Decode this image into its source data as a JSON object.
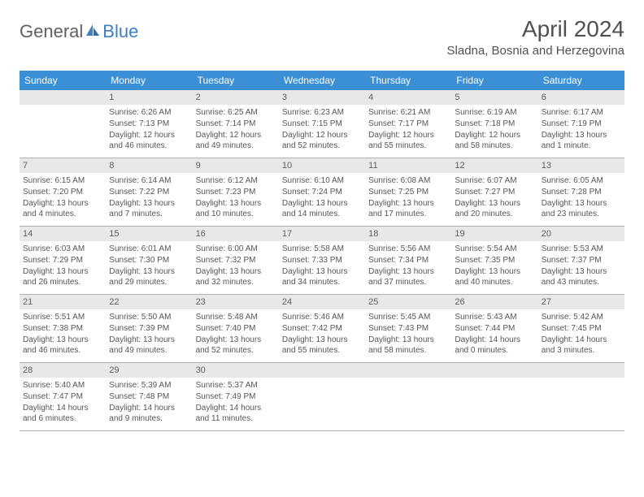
{
  "logo": {
    "general": "General",
    "blue": "Blue"
  },
  "title": "April 2024",
  "location": "Sladna, Bosnia and Herzegovina",
  "colors": {
    "header_bg": "#3b8fd4",
    "header_text": "#ffffff",
    "daynum_bg": "#e8e8e8",
    "text": "#555555",
    "border": "#b0b0b0",
    "title": "#505050",
    "logo_gray": "#606060",
    "logo_blue": "#3b7fc4"
  },
  "day_headers": [
    "Sunday",
    "Monday",
    "Tuesday",
    "Wednesday",
    "Thursday",
    "Friday",
    "Saturday"
  ],
  "leading_empty": 1,
  "days": [
    {
      "n": 1,
      "sr": "6:26 AM",
      "ss": "7:13 PM",
      "dl": "12 hours and 46 minutes."
    },
    {
      "n": 2,
      "sr": "6:25 AM",
      "ss": "7:14 PM",
      "dl": "12 hours and 49 minutes."
    },
    {
      "n": 3,
      "sr": "6:23 AM",
      "ss": "7:15 PM",
      "dl": "12 hours and 52 minutes."
    },
    {
      "n": 4,
      "sr": "6:21 AM",
      "ss": "7:17 PM",
      "dl": "12 hours and 55 minutes."
    },
    {
      "n": 5,
      "sr": "6:19 AM",
      "ss": "7:18 PM",
      "dl": "12 hours and 58 minutes."
    },
    {
      "n": 6,
      "sr": "6:17 AM",
      "ss": "7:19 PM",
      "dl": "13 hours and 1 minute."
    },
    {
      "n": 7,
      "sr": "6:15 AM",
      "ss": "7:20 PM",
      "dl": "13 hours and 4 minutes."
    },
    {
      "n": 8,
      "sr": "6:14 AM",
      "ss": "7:22 PM",
      "dl": "13 hours and 7 minutes."
    },
    {
      "n": 9,
      "sr": "6:12 AM",
      "ss": "7:23 PM",
      "dl": "13 hours and 10 minutes."
    },
    {
      "n": 10,
      "sr": "6:10 AM",
      "ss": "7:24 PM",
      "dl": "13 hours and 14 minutes."
    },
    {
      "n": 11,
      "sr": "6:08 AM",
      "ss": "7:25 PM",
      "dl": "13 hours and 17 minutes."
    },
    {
      "n": 12,
      "sr": "6:07 AM",
      "ss": "7:27 PM",
      "dl": "13 hours and 20 minutes."
    },
    {
      "n": 13,
      "sr": "6:05 AM",
      "ss": "7:28 PM",
      "dl": "13 hours and 23 minutes."
    },
    {
      "n": 14,
      "sr": "6:03 AM",
      "ss": "7:29 PM",
      "dl": "13 hours and 26 minutes."
    },
    {
      "n": 15,
      "sr": "6:01 AM",
      "ss": "7:30 PM",
      "dl": "13 hours and 29 minutes."
    },
    {
      "n": 16,
      "sr": "6:00 AM",
      "ss": "7:32 PM",
      "dl": "13 hours and 32 minutes."
    },
    {
      "n": 17,
      "sr": "5:58 AM",
      "ss": "7:33 PM",
      "dl": "13 hours and 34 minutes."
    },
    {
      "n": 18,
      "sr": "5:56 AM",
      "ss": "7:34 PM",
      "dl": "13 hours and 37 minutes."
    },
    {
      "n": 19,
      "sr": "5:54 AM",
      "ss": "7:35 PM",
      "dl": "13 hours and 40 minutes."
    },
    {
      "n": 20,
      "sr": "5:53 AM",
      "ss": "7:37 PM",
      "dl": "13 hours and 43 minutes."
    },
    {
      "n": 21,
      "sr": "5:51 AM",
      "ss": "7:38 PM",
      "dl": "13 hours and 46 minutes."
    },
    {
      "n": 22,
      "sr": "5:50 AM",
      "ss": "7:39 PM",
      "dl": "13 hours and 49 minutes."
    },
    {
      "n": 23,
      "sr": "5:48 AM",
      "ss": "7:40 PM",
      "dl": "13 hours and 52 minutes."
    },
    {
      "n": 24,
      "sr": "5:46 AM",
      "ss": "7:42 PM",
      "dl": "13 hours and 55 minutes."
    },
    {
      "n": 25,
      "sr": "5:45 AM",
      "ss": "7:43 PM",
      "dl": "13 hours and 58 minutes."
    },
    {
      "n": 26,
      "sr": "5:43 AM",
      "ss": "7:44 PM",
      "dl": "14 hours and 0 minutes."
    },
    {
      "n": 27,
      "sr": "5:42 AM",
      "ss": "7:45 PM",
      "dl": "14 hours and 3 minutes."
    },
    {
      "n": 28,
      "sr": "5:40 AM",
      "ss": "7:47 PM",
      "dl": "14 hours and 6 minutes."
    },
    {
      "n": 29,
      "sr": "5:39 AM",
      "ss": "7:48 PM",
      "dl": "14 hours and 9 minutes."
    },
    {
      "n": 30,
      "sr": "5:37 AM",
      "ss": "7:49 PM",
      "dl": "14 hours and 11 minutes."
    }
  ],
  "labels": {
    "sunrise": "Sunrise:",
    "sunset": "Sunset:",
    "daylight": "Daylight:"
  }
}
